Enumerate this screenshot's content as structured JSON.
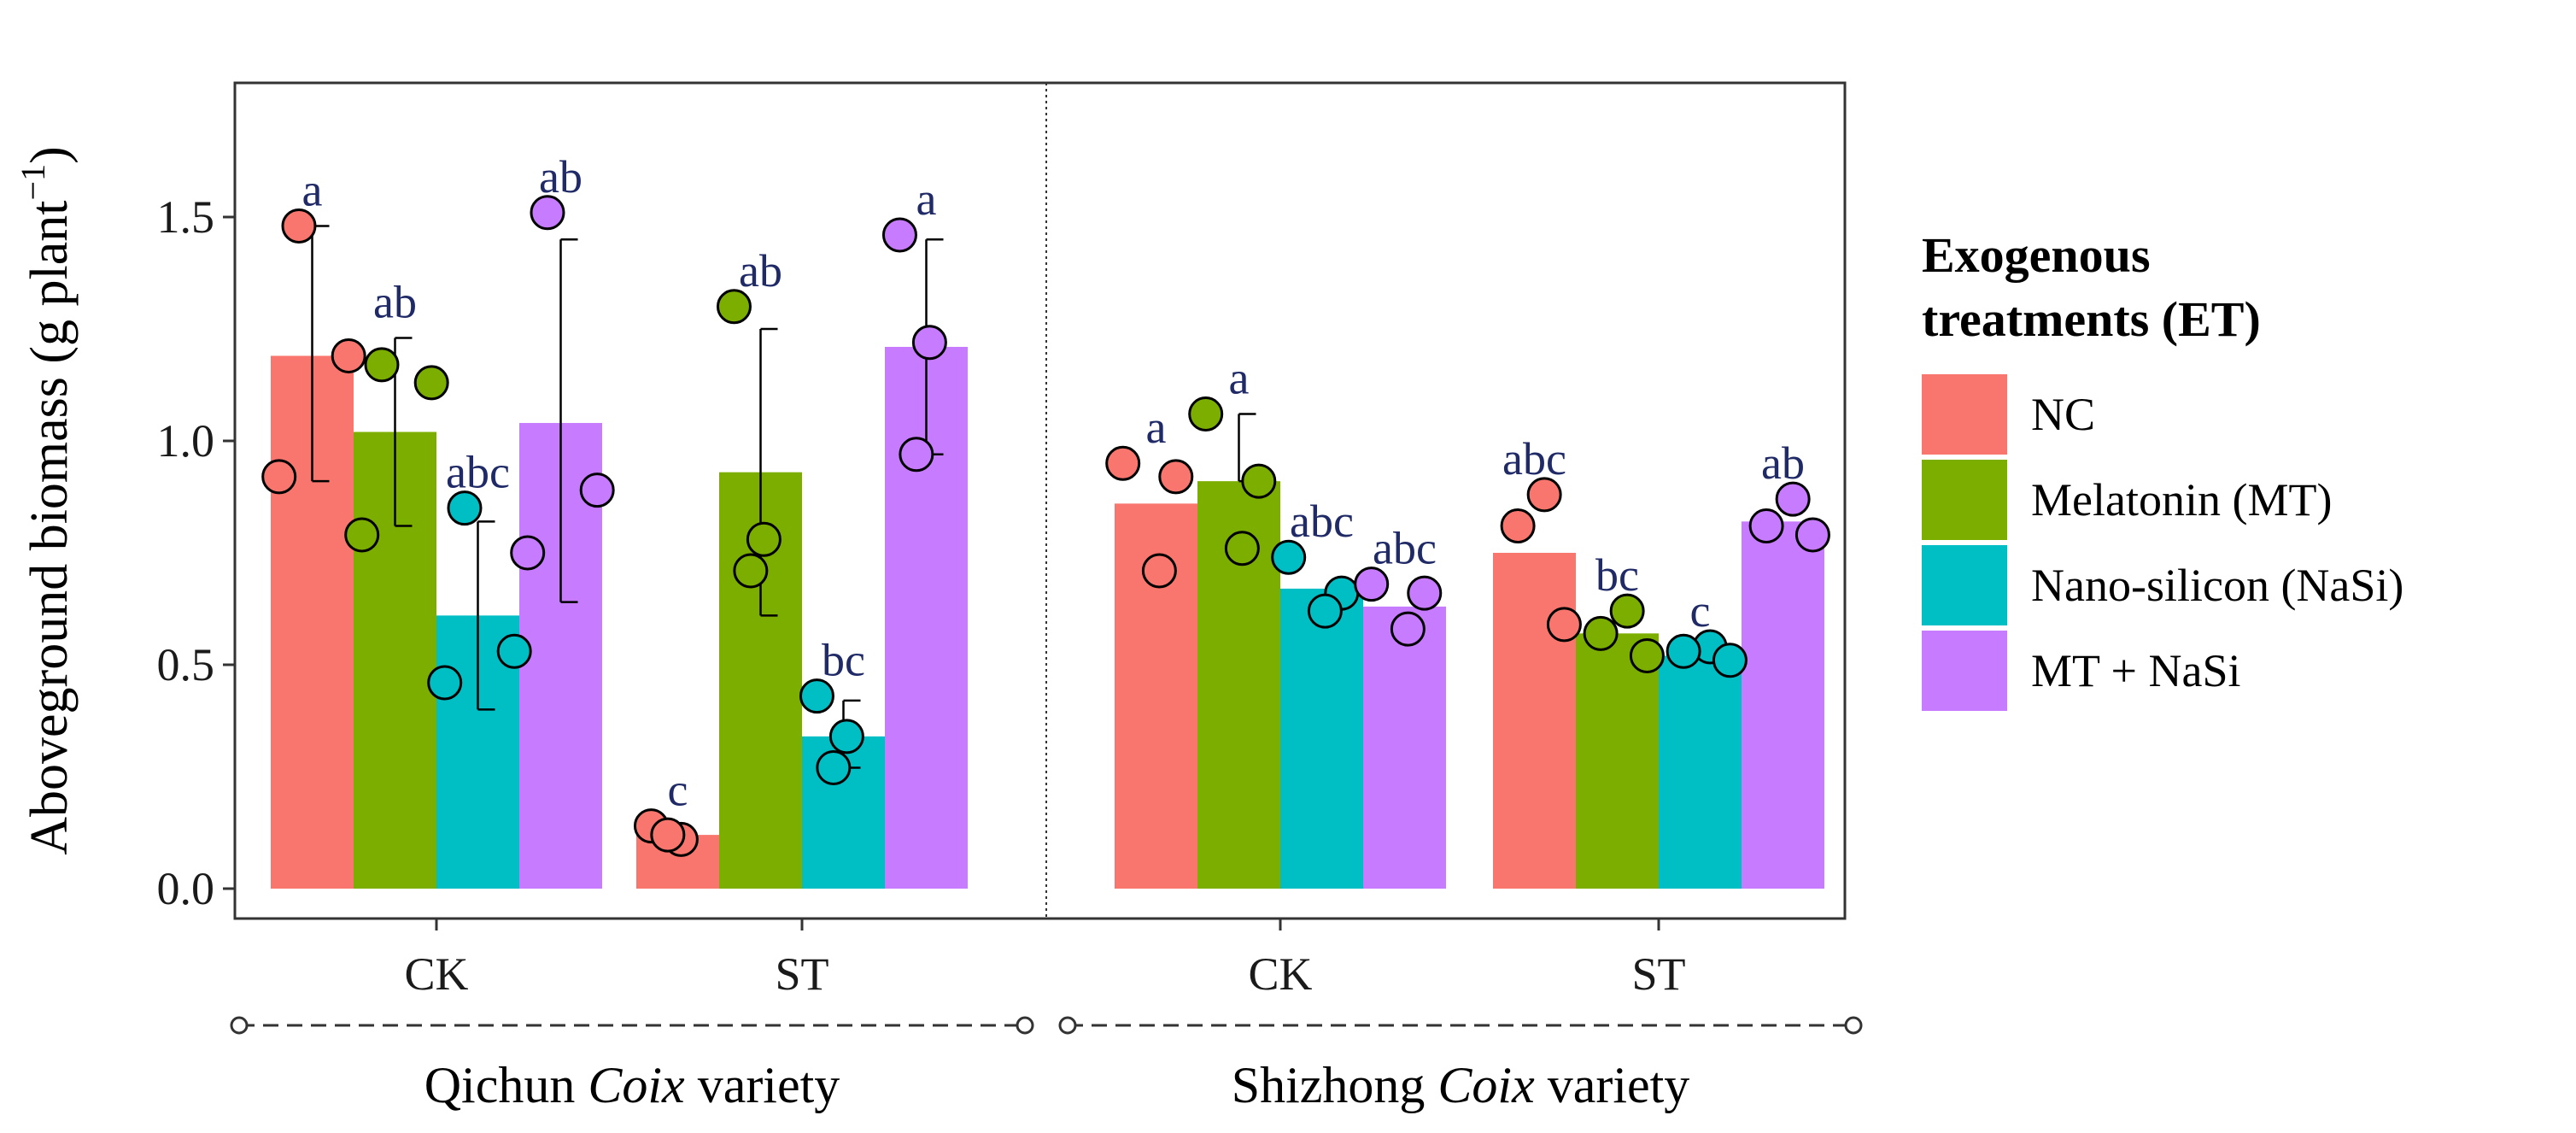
{
  "chart_data": {
    "type": "bar",
    "ylabel_main": "Aboveground biomass (g plant",
    "ylabel_sup": "−1",
    "ylabel_close": ")",
    "ylim": [
      0,
      1.75
    ],
    "yticks": [
      0.0,
      0.5,
      1.0,
      1.5
    ],
    "ytick_labels": [
      "0.0",
      "0.5",
      "1.0",
      "1.5"
    ],
    "categories": [
      "CK",
      "ST",
      "CK",
      "ST"
    ],
    "varieties": [
      {
        "name_start": "Qichun ",
        "name_italic": "Coix",
        "name_end": " variety"
      },
      {
        "name_start": "Shizhong ",
        "name_italic": "Coix",
        "name_end": " variety"
      }
    ],
    "legend": {
      "title_line1": "Exogenous",
      "title_line2": "treatments (ET)",
      "position": "right"
    },
    "series": [
      {
        "name": "NC",
        "color": "#F8766D",
        "values": [
          1.19,
          0.12,
          0.86,
          0.75
        ],
        "upper": [
          1.48,
          0.12,
          0.86,
          0.75
        ],
        "lower": [
          0.91,
          0.12,
          0.86,
          0.75
        ],
        "sig": [
          "a",
          "c",
          "a",
          "abc"
        ],
        "points": [
          [
            1.48,
            1.19,
            0.92
          ],
          [
            0.14,
            0.11,
            0.12
          ],
          [
            0.95,
            0.92,
            0.71
          ],
          [
            0.88,
            0.81,
            0.59
          ]
        ]
      },
      {
        "name": "Melatonin (MT)",
        "color": "#7CAE00",
        "values": [
          1.02,
          0.93,
          0.91,
          0.57
        ],
        "upper": [
          1.23,
          1.25,
          1.06,
          0.57
        ],
        "lower": [
          0.81,
          0.61,
          0.91,
          0.57
        ],
        "sig": [
          "ab",
          "ab",
          "a",
          "bc"
        ],
        "points": [
          [
            1.17,
            1.13,
            0.79
          ],
          [
            1.3,
            0.78,
            0.71
          ],
          [
            1.06,
            0.91,
            0.76
          ],
          [
            0.62,
            0.57,
            0.52
          ]
        ]
      },
      {
        "name": "Nano-silicon (NaSi)",
        "color": "#00BFC4",
        "values": [
          0.61,
          0.34,
          0.67,
          0.52
        ],
        "upper": [
          0.82,
          0.42,
          0.67,
          0.52
        ],
        "lower": [
          0.4,
          0.27,
          0.67,
          0.52
        ],
        "sig": [
          "abc",
          "bc",
          "abc",
          "c"
        ],
        "points": [
          [
            0.85,
            0.53,
            0.46
          ],
          [
            0.43,
            0.34,
            0.27
          ],
          [
            0.74,
            0.66,
            0.62
          ],
          [
            0.54,
            0.53,
            0.51
          ]
        ]
      },
      {
        "name": "MT + NaSi",
        "color": "#C77CFF",
        "values": [
          1.04,
          1.21,
          0.63,
          0.82
        ],
        "upper": [
          1.45,
          1.45,
          0.63,
          0.82
        ],
        "lower": [
          0.64,
          0.97,
          0.63,
          0.82
        ],
        "sig": [
          "ab",
          "a",
          "abc",
          "ab"
        ],
        "points": [
          [
            1.51,
            0.89,
            0.75
          ],
          [
            1.46,
            1.22,
            0.97
          ],
          [
            0.68,
            0.66,
            0.58
          ],
          [
            0.87,
            0.81,
            0.79
          ]
        ]
      }
    ]
  }
}
